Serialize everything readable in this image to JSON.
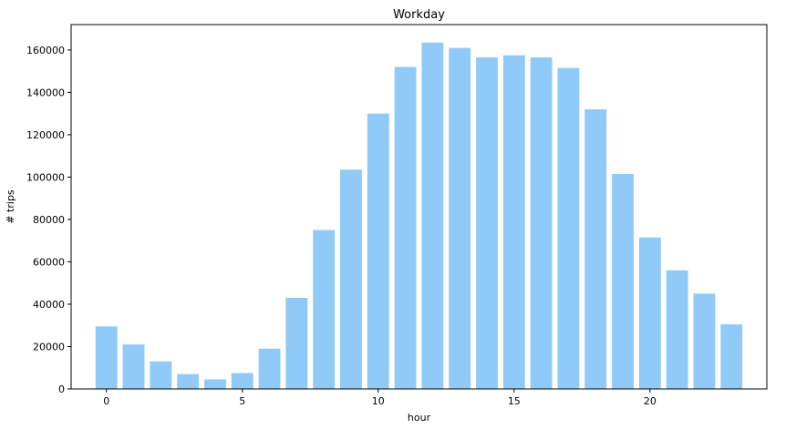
{
  "chart_data": {
    "type": "bar",
    "title": "Workday",
    "xlabel": "hour",
    "ylabel": "# trips",
    "x": [
      0,
      1,
      2,
      3,
      4,
      5,
      6,
      7,
      8,
      9,
      10,
      11,
      12,
      13,
      14,
      15,
      16,
      17,
      18,
      19,
      20,
      21,
      22,
      23
    ],
    "values": [
      29500,
      21000,
      13000,
      7000,
      4500,
      7500,
      19000,
      43000,
      75000,
      103500,
      130000,
      152000,
      163500,
      161000,
      156500,
      157500,
      156500,
      151500,
      132000,
      101500,
      71500,
      56000,
      45000,
      30500
    ],
    "xlim": [
      -1.3,
      24.3
    ],
    "ylim": [
      0,
      172000
    ],
    "xticks": [
      0,
      5,
      10,
      15,
      20
    ],
    "yticks": [
      0,
      20000,
      40000,
      60000,
      80000,
      100000,
      120000,
      140000,
      160000
    ],
    "bar_color": "#90caf9",
    "grid": false,
    "legend": "none"
  }
}
